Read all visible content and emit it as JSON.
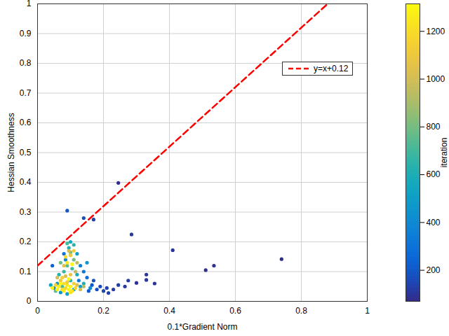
{
  "chart_data": {
    "type": "scatter",
    "x_label": "0.1*Gradient Norm",
    "y_label": "Hessian Smoothness",
    "xlim": [
      0,
      1
    ],
    "ylim": [
      0,
      1
    ],
    "xticks": [
      0,
      0.2,
      0.4,
      0.6,
      0.8,
      1
    ],
    "yticks": [
      0,
      0.1,
      0.2,
      0.3,
      0.4,
      0.5,
      0.6,
      0.7,
      0.8,
      0.9,
      1
    ],
    "grid": true,
    "marker": "circle",
    "x": [
      0.74,
      0.535,
      0.51,
      0.41,
      0.285,
      0.245,
      0.355,
      0.33,
      0.33,
      0.3,
      0.275,
      0.265,
      0.245,
      0.23,
      0.21,
      0.2,
      0.215,
      0.19,
      0.17,
      0.14,
      0.09,
      0.18,
      0.165,
      0.155,
      0.045,
      0.17,
      0.08,
      0.1,
      0.095,
      0.12,
      0.11,
      0.085,
      0.13,
      0.14,
      0.15,
      0.125,
      0.06,
      0.05,
      0.07,
      0.09,
      0.11,
      0.13,
      0.04,
      0.065,
      0.105,
      0.09,
      0.08,
      0.12,
      0.1,
      0.075,
      0.055,
      0.14,
      0.16,
      0.15,
      0.11,
      0.07,
      0.1,
      0.09,
      0.095,
      0.1,
      0.085,
      0.11,
      0.09,
      0.12,
      0.08,
      0.105,
      0.06,
      0.07,
      0.08,
      0.09,
      0.1,
      0.11,
      0.12,
      0.065,
      0.075,
      0.085,
      0.095,
      0.105,
      0.055,
      0.045,
      0.115,
      0.13,
      0.14,
      0.07,
      0.09,
      0.1,
      0.085,
      0.115,
      0.06,
      0.08,
      0.1,
      0.095,
      0.075
    ],
    "values": [
      0.142,
      0.12,
      0.105,
      0.172,
      0.225,
      0.398,
      0.06,
      0.09,
      0.072,
      0.062,
      0.07,
      0.05,
      0.055,
      0.04,
      0.045,
      0.035,
      0.028,
      0.05,
      0.275,
      0.28,
      0.305,
      0.04,
      0.055,
      0.035,
      0.12,
      0.07,
      0.16,
      0.2,
      0.18,
      0.16,
      0.19,
      0.14,
      0.12,
      0.1,
      0.08,
      0.07,
      0.06,
      0.045,
      0.03,
      0.025,
      0.04,
      0.05,
      0.055,
      0.09,
      0.11,
      0.12,
      0.1,
      0.09,
      0.07,
      0.05,
      0.035,
      0.06,
      0.045,
      0.13,
      0.14,
      0.13,
      0.165,
      0.195,
      0.17,
      0.155,
      0.15,
      0.17,
      0.13,
      0.13,
      0.12,
      0.125,
      0.08,
      0.07,
      0.06,
      0.055,
      0.05,
      0.06,
      0.055,
      0.05,
      0.04,
      0.045,
      0.04,
      0.035,
      0.055,
      0.045,
      0.045,
      0.04,
      0.05,
      0.06,
      0.065,
      0.09,
      0.085,
      0.1,
      0.04,
      0.035,
      0.03,
      0.075,
      0.08
    ],
    "iteration": [
      80,
      90,
      85,
      100,
      110,
      75,
      95,
      100,
      105,
      90,
      120,
      110,
      130,
      125,
      140,
      150,
      135,
      160,
      140,
      170,
      200,
      180,
      200,
      210,
      230,
      190,
      300,
      560,
      600,
      500,
      650,
      400,
      350,
      320,
      280,
      330,
      420,
      380,
      450,
      500,
      520,
      480,
      550,
      620,
      700,
      750,
      680,
      580,
      640,
      720,
      760,
      600,
      400,
      450,
      800,
      780,
      820,
      700,
      1000,
      1100,
      1200,
      1150,
      1250,
      950,
      1050,
      1300,
      1000,
      1100,
      1200,
      1250,
      1300,
      1150,
      1050,
      1280,
      1220,
      1180,
      1310,
      1240,
      1160,
      1270,
      1200,
      990,
      920,
      1300,
      1120,
      1080,
      1020,
      960,
      1290,
      1260,
      1230,
      1310,
      1140
    ],
    "colorbar": {
      "label": "iteration",
      "range": [
        70,
        1315
      ],
      "ticks": [
        200,
        400,
        600,
        800,
        1000,
        1200
      ]
    },
    "series": [
      {
        "name": "y=x+0.12",
        "type": "line",
        "color": "#ff0000",
        "line_style": "dashed",
        "x": [
          0,
          0.88
        ],
        "values": [
          0.12,
          1
        ]
      }
    ]
  }
}
